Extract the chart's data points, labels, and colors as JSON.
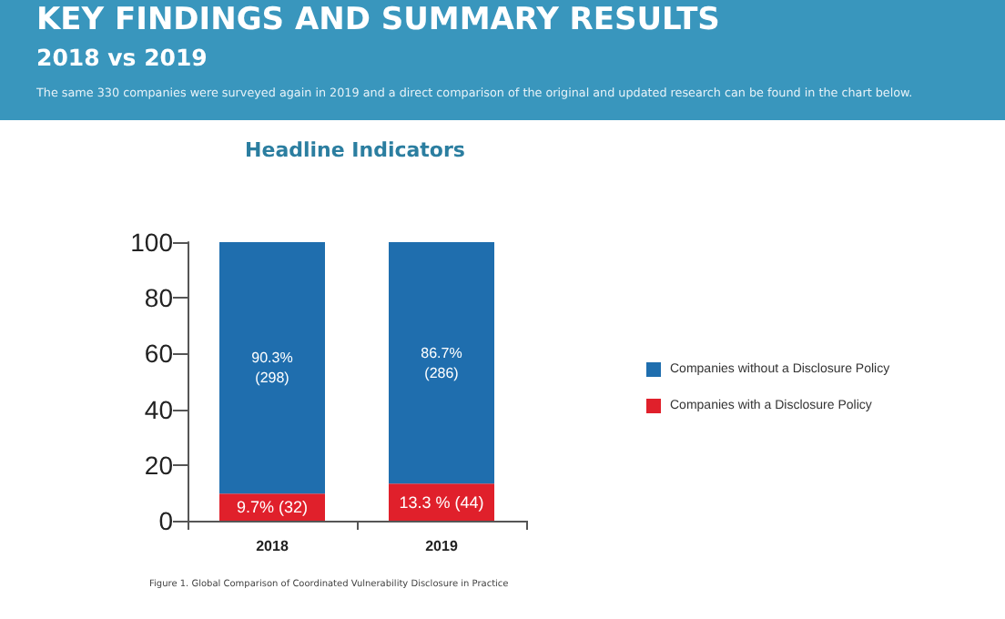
{
  "chart_data": {
    "type": "bar",
    "title": "KEY FINDINGS AND SUMMARY RESULTS",
    "subtitle": "2018 vs 2019",
    "annotations": [
      "The same 330 companies were surveyed again in 2019 and a direct comparison of the original and updated research can be found in the chart below.",
      "Headline Indicators",
      "Figure 1. Global Comparison of Coordinated Vulnerability Disclosure in Practice"
    ],
    "categories": [
      "2018",
      "2019"
    ],
    "stacked": true,
    "series": [
      {
        "name": "Companies with a Disclosure Policy",
        "color": "#e0202b",
        "values": [
          9.7,
          13.3
        ],
        "value_labels": [
          "9.7% (32)",
          "13.3 % (44)"
        ]
      },
      {
        "name": "Companies without a Disclosure Policy",
        "color": "#1f6eae",
        "values": [
          90.3,
          86.7
        ],
        "value_labels": [
          "90.3%\n(298)",
          "86.7%\n(286)"
        ]
      }
    ],
    "ylim": [
      0,
      100
    ],
    "yticks": [
      0,
      20,
      40,
      60,
      80,
      100
    ],
    "grid": false,
    "legend": "right"
  }
}
